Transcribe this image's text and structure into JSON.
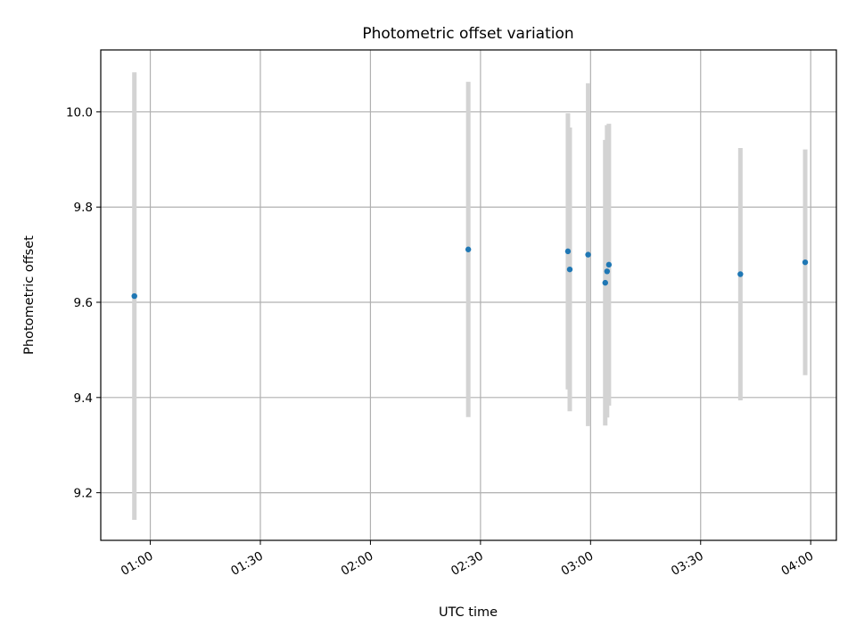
{
  "chart_data": {
    "type": "scatter",
    "title": "Photometric offset variation",
    "xlabel": "UTC time",
    "ylabel": "Photometric offset",
    "x_ticks": [
      "01:00",
      "01:30",
      "02:00",
      "02:30",
      "03:00",
      "03:30",
      "04:00"
    ],
    "x_tick_values_min": [
      60,
      90,
      120,
      150,
      180,
      210,
      240
    ],
    "xlim_min": [
      46.5,
      247
    ],
    "y_ticks": [
      "9.2",
      "9.4",
      "9.6",
      "9.8",
      "10.0"
    ],
    "y_tick_values": [
      9.2,
      9.4,
      9.6,
      9.8,
      10.0
    ],
    "ylim": [
      9.1,
      10.13
    ],
    "grid": true,
    "point_color": "#1f77b4",
    "errorbar_color": "#d3d3d3",
    "points": [
      {
        "time": "00:55:40",
        "y": 9.613,
        "err": 0.47
      },
      {
        "time": "02:26:40",
        "y": 9.711,
        "err": 0.352
      },
      {
        "time": "02:53:50",
        "y": 9.707,
        "err": 0.29
      },
      {
        "time": "02:54:20",
        "y": 9.669,
        "err": 0.298
      },
      {
        "time": "02:59:20",
        "y": 9.7,
        "err": 0.36
      },
      {
        "time": "03:04:00",
        "y": 9.641,
        "err": 0.3
      },
      {
        "time": "03:04:30",
        "y": 9.665,
        "err": 0.307
      },
      {
        "time": "03:05:00",
        "y": 9.679,
        "err": 0.296
      },
      {
        "time": "03:40:50",
        "y": 9.659,
        "err": 0.265
      },
      {
        "time": "03:58:30",
        "y": 9.684,
        "err": 0.237
      }
    ]
  }
}
